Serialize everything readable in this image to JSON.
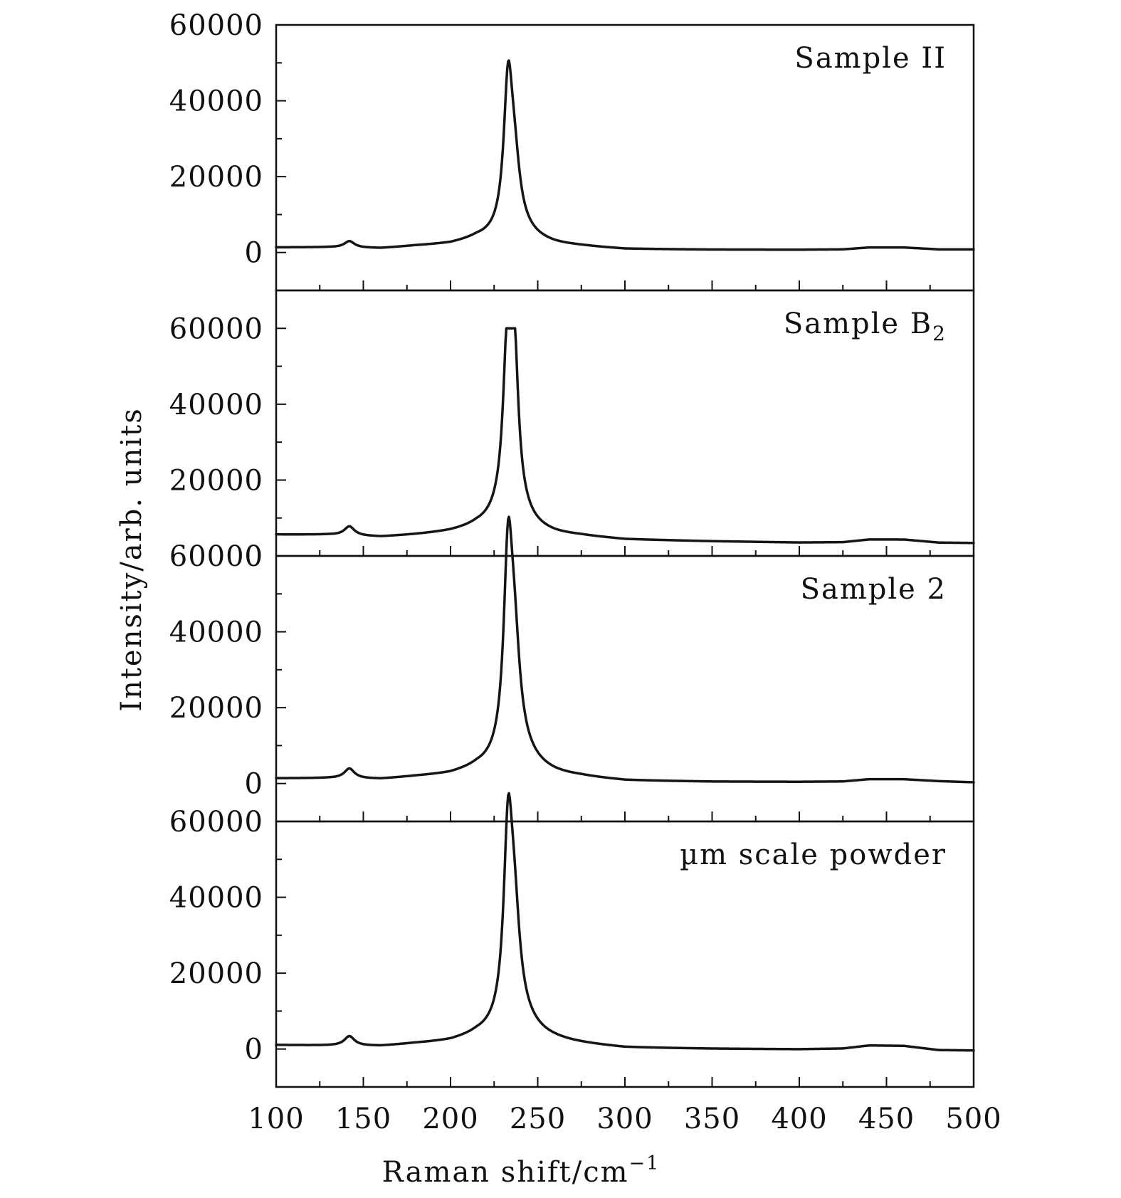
{
  "chart_data": {
    "type": "line",
    "xlabel": "Raman shift/cm",
    "xlabel_superscript": "−1",
    "ylabel": "Intensity/arb. units",
    "xlim": [
      100,
      500
    ],
    "x_ticks": [
      100,
      150,
      200,
      250,
      300,
      350,
      400,
      450,
      500
    ],
    "x_minor_step": 25,
    "grid": false,
    "panels": [
      {
        "label": "Sample II",
        "ylim": [
          -10000,
          60000
        ],
        "y_ticks": [
          0,
          20000,
          40000,
          60000
        ],
        "baseline": [
          [
            100,
            1300
          ],
          [
            130,
            1300
          ],
          [
            160,
            1000
          ],
          [
            180,
            1600
          ],
          [
            200,
            2000
          ],
          [
            215,
            3000
          ],
          [
            260,
            1600
          ],
          [
            275,
            1400
          ],
          [
            300,
            800
          ],
          [
            350,
            700
          ],
          [
            400,
            700
          ],
          [
            425,
            800
          ],
          [
            440,
            1300
          ],
          [
            460,
            1300
          ],
          [
            480,
            800
          ],
          [
            500,
            800
          ]
        ],
        "peaks": [
          {
            "center": 142,
            "height": 1700,
            "width": 3.5
          },
          {
            "center": 233,
            "height": 36200,
            "width": 3.0
          },
          {
            "center": 236.5,
            "height": 16000,
            "width": 4.0
          },
          {
            "center": 238,
            "height": 3000,
            "width": 14.0
          }
        ]
      },
      {
        "label": "Sample B",
        "label_subscript": "2",
        "ylim": [
          0,
          70000
        ],
        "y_ticks": [
          0,
          20000,
          40000,
          60000
        ],
        "baseline": [
          [
            100,
            5600
          ],
          [
            130,
            5500
          ],
          [
            160,
            4900
          ],
          [
            180,
            5400
          ],
          [
            200,
            6000
          ],
          [
            215,
            6800
          ],
          [
            260,
            5200
          ],
          [
            275,
            5000
          ],
          [
            300,
            4200
          ],
          [
            350,
            3800
          ],
          [
            400,
            3500
          ],
          [
            425,
            3600
          ],
          [
            440,
            4300
          ],
          [
            460,
            4300
          ],
          [
            480,
            3500
          ],
          [
            500,
            3400
          ]
        ],
        "peaks": [
          {
            "center": 142,
            "height": 2400,
            "width": 3.5
          },
          {
            "center": 232.5,
            "height": 38000,
            "width": 2.8
          },
          {
            "center": 236.5,
            "height": 38000,
            "width": 2.8
          },
          {
            "center": 234.5,
            "height": 8000,
            "width": 10.0
          }
        ],
        "peak_clip": 60000
      },
      {
        "label": "Sample 2",
        "ylim": [
          -10000,
          60000
        ],
        "y_ticks": [
          0,
          20000,
          40000,
          60000
        ],
        "baseline": [
          [
            100,
            1300
          ],
          [
            130,
            1300
          ],
          [
            160,
            1000
          ],
          [
            180,
            1600
          ],
          [
            200,
            2000
          ],
          [
            215,
            3000
          ],
          [
            260,
            1600
          ],
          [
            275,
            1400
          ],
          [
            300,
            600
          ],
          [
            350,
            400
          ],
          [
            400,
            400
          ],
          [
            425,
            500
          ],
          [
            440,
            1100
          ],
          [
            460,
            1100
          ],
          [
            480,
            600
          ],
          [
            500,
            300
          ]
        ],
        "peaks": [
          {
            "center": 142,
            "height": 2600,
            "width": 3.5
          },
          {
            "center": 233,
            "height": 48000,
            "width": 3.0
          },
          {
            "center": 236.5,
            "height": 26000,
            "width": 4.0
          },
          {
            "center": 238,
            "height": 5000,
            "width": 14.0
          }
        ]
      },
      {
        "label": "µm scale powder",
        "ylim": [
          -10000,
          60000
        ],
        "y_ticks": [
          0,
          20000,
          40000,
          60000
        ],
        "baseline": [
          [
            100,
            1000
          ],
          [
            130,
            800
          ],
          [
            160,
            600
          ],
          [
            180,
            1200
          ],
          [
            200,
            1600
          ],
          [
            215,
            2600
          ],
          [
            260,
            1500
          ],
          [
            275,
            1000
          ],
          [
            300,
            200
          ],
          [
            350,
            0
          ],
          [
            400,
            -100
          ],
          [
            425,
            100
          ],
          [
            440,
            900
          ],
          [
            460,
            800
          ],
          [
            480,
            -300
          ],
          [
            500,
            -400
          ]
        ],
        "peaks": [
          {
            "center": 142,
            "height": 2500,
            "width": 3.5
          },
          {
            "center": 233,
            "height": 46000,
            "width": 3.0
          },
          {
            "center": 236.5,
            "height": 25000,
            "width": 4.0
          },
          {
            "center": 238,
            "height": 5000,
            "width": 14.0
          }
        ]
      }
    ]
  }
}
